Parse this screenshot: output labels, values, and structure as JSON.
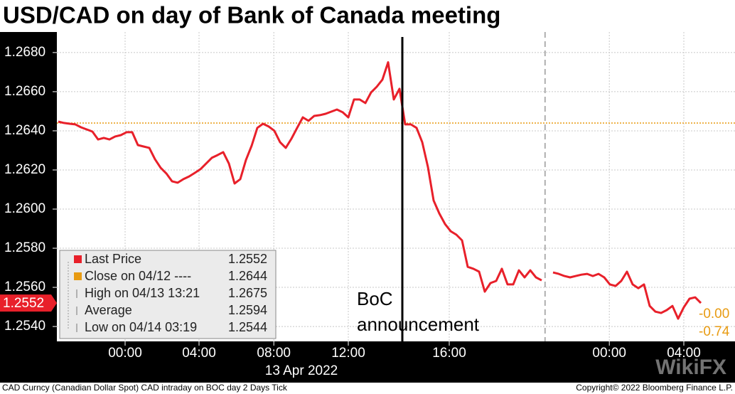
{
  "chart_data": {
    "type": "line",
    "title": "USD/CAD on day of Bank of Canada meeting",
    "x": [
      0,
      1,
      2,
      3,
      4,
      5,
      6,
      7,
      8,
      9,
      10,
      11,
      12,
      13,
      14,
      15,
      16,
      17,
      18,
      19,
      20,
      21,
      22,
      23,
      24,
      25,
      26,
      27,
      28,
      29,
      30,
      31,
      32,
      33,
      34,
      35,
      36,
      37,
      38,
      39,
      40,
      41,
      42,
      43,
      44,
      45,
      46,
      47,
      48,
      49,
      50,
      51,
      52,
      53,
      54,
      55,
      56,
      57,
      58,
      59,
      60,
      61,
      62,
      63,
      64,
      65,
      66,
      67,
      68,
      69,
      70,
      71,
      72,
      73,
      74,
      75,
      76,
      77,
      78,
      79,
      80,
      81,
      82,
      83,
      84,
      85,
      86,
      87,
      88,
      89,
      90,
      91,
      92,
      93,
      94,
      95,
      96,
      97,
      98,
      99,
      100,
      101,
      102,
      103,
      104,
      105,
      106,
      107,
      108,
      109,
      110,
      111,
      112,
      113
    ],
    "series": [
      {
        "name": "Last Price",
        "color": "#e8202a",
        "values": [
          1.26447,
          1.2644,
          1.26436,
          1.26433,
          1.26418,
          1.26407,
          1.26396,
          1.26356,
          1.26364,
          1.26356,
          1.26371,
          1.26378,
          1.26393,
          1.26393,
          1.26327,
          1.2632,
          1.26313,
          1.26255,
          1.26211,
          1.26182,
          1.26142,
          1.26135,
          1.26153,
          1.26167,
          1.26185,
          1.26204,
          1.26233,
          1.26262,
          1.26276,
          1.26291,
          1.26233,
          1.26131,
          1.26153,
          1.26251,
          1.26324,
          1.26415,
          1.26436,
          1.26422,
          1.264,
          1.26342,
          1.26313,
          1.2636,
          1.26415,
          1.26469,
          1.26451,
          1.26476,
          1.2648,
          1.26487,
          1.26498,
          1.26509,
          1.26495,
          1.26469,
          1.2656,
          1.2656,
          1.26542,
          1.26596,
          1.26625,
          1.26662,
          1.2675,
          1.2656,
          1.26615,
          1.26433,
          1.26433,
          1.26415,
          1.26342,
          1.26215,
          1.26044,
          1.25978,
          1.25924,
          1.25887,
          1.25869,
          1.2584,
          1.25705,
          1.25695,
          1.2568,
          1.25578,
          1.25622,
          1.25633,
          1.25695,
          1.25615,
          1.25615,
          1.25687,
          1.25651,
          1.25687,
          1.25651,
          1.25636,
          null,
          1.25676,
          1.25669,
          1.25658,
          1.25651,
          1.25658,
          1.25665,
          1.25669,
          1.25658,
          1.25669,
          1.25651,
          1.25615,
          1.25607,
          1.25633,
          1.2568,
          1.25615,
          1.25596,
          1.25615,
          1.25505,
          1.25476,
          1.25469,
          1.25484,
          1.25505,
          1.2544,
          1.25498,
          1.25542,
          1.25549,
          1.2552
        ]
      }
    ],
    "xlim": [
      -0.25,
      119
    ],
    "xticks": [
      {
        "value": 11.75,
        "label": "00:00"
      },
      {
        "value": 24.75,
        "label": "04:00"
      },
      {
        "value": 37.9,
        "label": "08:00"
      },
      {
        "value": 51,
        "label": "12:00"
      },
      {
        "value": 68.75,
        "label": "16:00"
      },
      {
        "value": 96.9,
        "label": "00:00"
      },
      {
        "value": 110,
        "label": "04:00"
      }
    ],
    "date_label": "13 Apr 2022",
    "session_break_x": 85.6,
    "ylim": [
      1.25324,
      1.26905
    ],
    "yticks": [
      {
        "value": 1.268,
        "label": "1.2680"
      },
      {
        "value": 1.266,
        "label": "1.2660"
      },
      {
        "value": 1.264,
        "label": "1.2640"
      },
      {
        "value": 1.262,
        "label": "1.2620"
      },
      {
        "value": 1.26,
        "label": "1.2600"
      },
      {
        "value": 1.258,
        "label": "1.2580"
      },
      {
        "value": 1.256,
        "label": "1.2560"
      },
      {
        "value": 1.254,
        "label": "1.2540"
      }
    ],
    "grid": true,
    "close_color": "#e89b12",
    "stats": [
      {
        "label": "Last Price",
        "value": 1.2552
      },
      {
        "label": "Close on 04/12 ----",
        "value": 1.2644
      },
      {
        "label": "High on 04/13 13:21",
        "value": 1.2675
      },
      {
        "label": "Average",
        "value": 1.2594
      },
      {
        "label": "Low on 04/14 03:19",
        "value": 1.2544
      }
    ],
    "event": {
      "x": 60.5,
      "label_lines": [
        "BoC",
        "announcement"
      ]
    },
    "right_labels": [
      "-0.00",
      "-0.74"
    ],
    "footer_left": "CAD Curncy (Canadian Dollar Spot) CAD intraday on BOC day 2 Days  Tick",
    "footer_right": "Copyright© 2022 Bloomberg Finance L.P.",
    "watermark": "WikiFX"
  }
}
